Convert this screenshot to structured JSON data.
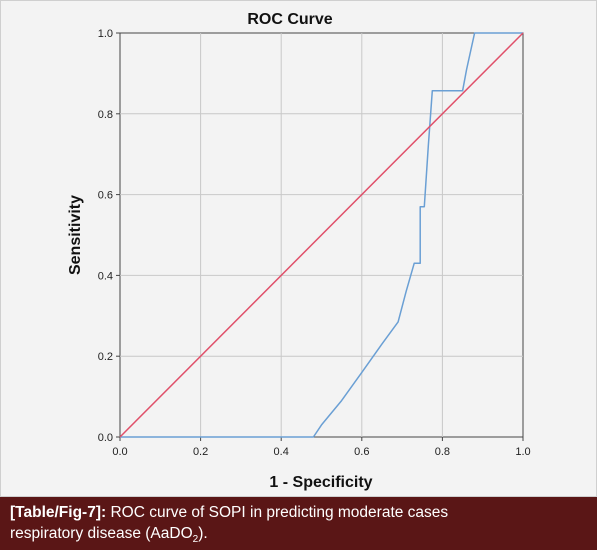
{
  "chart_data": {
    "type": "line",
    "title": "ROC Curve",
    "xlabel": "1 - Specificity",
    "ylabel": "Sensitivity",
    "xlim": [
      0,
      1
    ],
    "ylim": [
      0,
      1
    ],
    "x_ticks": [
      "0.0",
      "0.2",
      "0.4",
      "0.6",
      "0.8",
      "1.0"
    ],
    "y_ticks": [
      "0.0",
      "0.2",
      "0.4",
      "0.6",
      "0.8",
      "1.0"
    ],
    "grid": true,
    "series": [
      {
        "color": "#6a9fd4",
        "x": [
          0,
          0.48,
          0.5,
          0.55,
          0.6,
          0.65,
          0.69,
          0.71,
          0.73,
          0.74,
          0.745,
          0.745,
          0.75,
          0.755,
          0.765,
          0.775,
          0.775,
          0.85,
          0.86,
          0.88,
          1.0
        ],
        "y": [
          0,
          0,
          0.03,
          0.09,
          0.16,
          0.23,
          0.285,
          0.36,
          0.43,
          0.43,
          0.43,
          0.57,
          0.57,
          0.57,
          0.72,
          0.857,
          0.857,
          0.857,
          0.91,
          1.0,
          1.0
        ]
      },
      {
        "color": "#e0506a",
        "x": [
          0,
          1
        ],
        "y": [
          0,
          1
        ]
      }
    ]
  },
  "caption": {
    "label": "[Table/Fig-7]:",
    "text_line1": "ROC curve of SOPI in predicting moderate cases",
    "text_line2": "respiratory disease (AaDO",
    "text_sub": "2",
    "text_end": ")."
  }
}
